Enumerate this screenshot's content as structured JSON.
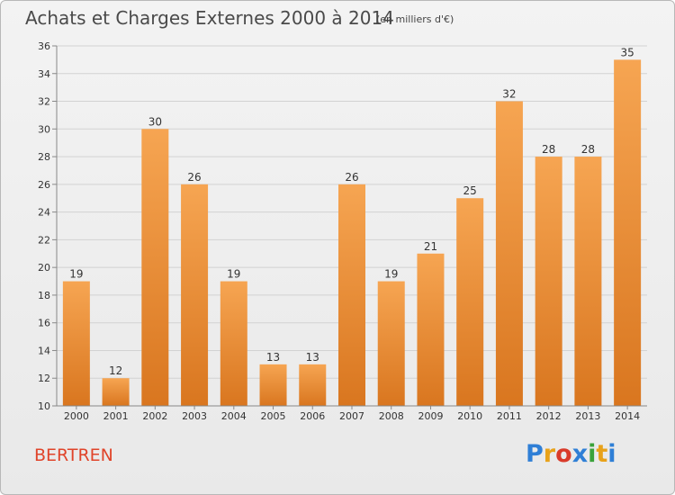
{
  "header": {
    "title": "Achats et Charges Externes 2000 à 2014",
    "unit": "(en milliers d'€)"
  },
  "footer": {
    "place": "BERTREN",
    "brand_letters": [
      "P",
      "r",
      "o",
      "x",
      "i",
      "t",
      "i"
    ],
    "brand_colors": [
      "#2f7fd6",
      "#e8a21a",
      "#d93b2a",
      "#2f7fd6",
      "#3aa23a",
      "#e8a21a",
      "#2f7fd6"
    ]
  },
  "colors": {
    "bar_top": "#f6a552",
    "bar_bottom": "#d9761f",
    "grid": "#d2d2d2",
    "axis": "#888888",
    "text": "#333333"
  },
  "chart_data": {
    "type": "bar",
    "categories": [
      "2000",
      "2001",
      "2002",
      "2003",
      "2004",
      "2005",
      "2006",
      "2007",
      "2008",
      "2009",
      "2010",
      "2011",
      "2012",
      "2013",
      "2014"
    ],
    "values": [
      19,
      12,
      30,
      26,
      19,
      13,
      13,
      26,
      19,
      21,
      25,
      32,
      28,
      28,
      35
    ],
    "data_labels": [
      "19",
      "12",
      "30",
      "26",
      "19",
      "13",
      "13",
      "26",
      "19",
      "21",
      "25",
      "32",
      "28",
      "28",
      "35"
    ],
    "yticks": [
      10,
      12,
      14,
      16,
      18,
      20,
      22,
      24,
      26,
      28,
      30,
      32,
      34,
      36
    ],
    "ylim": [
      10,
      36
    ],
    "grid": true
  }
}
